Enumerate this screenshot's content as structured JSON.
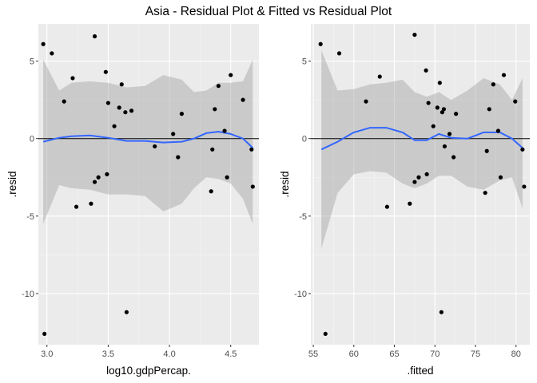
{
  "title": "Asia -  Residual Plot & Fitted vs Residual Plot",
  "chart_data": [
    {
      "type": "scatter",
      "xlabel": "log10.gdpPercap.",
      "ylabel": ".resid",
      "xlim": [
        2.93,
        4.73
      ],
      "ylim": [
        -13.3,
        7.4
      ],
      "x_ticks": [
        3.0,
        3.5,
        4.0,
        4.5
      ],
      "x_tick_labels": [
        "3.0",
        "3.5",
        "4.0",
        "4.5"
      ],
      "y_ticks": [
        -10,
        -5,
        0,
        5
      ],
      "y_tick_labels": [
        "-10",
        "-5",
        "0",
        "5"
      ],
      "grid": true,
      "reference_line_y": 0,
      "points": [
        {
          "x": 2.97,
          "y": 6.1
        },
        {
          "x": 2.98,
          "y": -12.6
        },
        {
          "x": 3.04,
          "y": 5.5
        },
        {
          "x": 3.14,
          "y": 2.4
        },
        {
          "x": 3.21,
          "y": 3.9
        },
        {
          "x": 3.24,
          "y": -4.4
        },
        {
          "x": 3.36,
          "y": -4.2
        },
        {
          "x": 3.39,
          "y": 6.6
        },
        {
          "x": 3.39,
          "y": -2.8
        },
        {
          "x": 3.42,
          "y": -2.5
        },
        {
          "x": 3.48,
          "y": 4.3
        },
        {
          "x": 3.49,
          "y": -2.3
        },
        {
          "x": 3.5,
          "y": 2.3
        },
        {
          "x": 3.55,
          "y": 0.8
        },
        {
          "x": 3.59,
          "y": 2.0
        },
        {
          "x": 3.61,
          "y": 3.5
        },
        {
          "x": 3.64,
          "y": 1.7
        },
        {
          "x": 3.65,
          "y": -11.2
        },
        {
          "x": 3.69,
          "y": 1.8
        },
        {
          "x": 3.88,
          "y": -0.5
        },
        {
          "x": 4.03,
          "y": 0.3
        },
        {
          "x": 4.07,
          "y": -1.2
        },
        {
          "x": 4.1,
          "y": 1.6
        },
        {
          "x": 4.34,
          "y": -3.4
        },
        {
          "x": 4.35,
          "y": -0.7
        },
        {
          "x": 4.37,
          "y": 1.9
        },
        {
          "x": 4.4,
          "y": 3.4
        },
        {
          "x": 4.45,
          "y": 0.5
        },
        {
          "x": 4.47,
          "y": -2.5
        },
        {
          "x": 4.5,
          "y": 4.1
        },
        {
          "x": 4.6,
          "y": 2.5
        },
        {
          "x": 4.67,
          "y": -0.7
        },
        {
          "x": 4.68,
          "y": -3.1
        }
      ],
      "smooth": {
        "x": [
          2.97,
          3.1,
          3.2,
          3.35,
          3.5,
          3.65,
          3.8,
          3.95,
          4.1,
          4.2,
          4.3,
          4.4,
          4.5,
          4.6,
          4.68
        ],
        "y": [
          -0.2,
          0.05,
          0.15,
          0.2,
          0.05,
          -0.15,
          -0.15,
          -0.25,
          -0.2,
          0.0,
          0.35,
          0.45,
          0.3,
          0.0,
          -0.6
        ],
        "lower": [
          -5.5,
          -3.0,
          -3.2,
          -3.3,
          -3.6,
          -3.6,
          -3.7,
          -4.7,
          -4.2,
          -3.2,
          -2.5,
          -2.6,
          -2.9,
          -3.9,
          -5.5
        ],
        "upper": [
          5.1,
          3.1,
          3.6,
          3.7,
          3.6,
          3.3,
          3.4,
          4.1,
          3.8,
          3.0,
          3.1,
          3.6,
          3.6,
          3.7,
          5.1
        ]
      },
      "colors": {
        "smooth_line": "#3366ff",
        "band": "#999999",
        "points": "#000000",
        "panel": "#ebebeb"
      }
    },
    {
      "type": "scatter",
      "xlabel": ".fitted",
      "ylabel": ".resid",
      "xlim": [
        54.7,
        81.7
      ],
      "ylim": [
        -13.3,
        7.4
      ],
      "x_ticks": [
        55,
        60,
        65,
        70,
        75,
        80
      ],
      "x_tick_labels": [
        "55",
        "60",
        "65",
        "70",
        "75",
        "80"
      ],
      "y_ticks": [
        -10,
        -5,
        0,
        5
      ],
      "y_tick_labels": [
        "-10",
        "-5",
        "0",
        "5"
      ],
      "grid": true,
      "reference_line_y": 0,
      "points": [
        {
          "x": 55.9,
          "y": 6.1
        },
        {
          "x": 56.5,
          "y": -12.6
        },
        {
          "x": 58.2,
          "y": 5.5
        },
        {
          "x": 61.5,
          "y": 2.4
        },
        {
          "x": 63.2,
          "y": 4.0
        },
        {
          "x": 64.1,
          "y": -4.4
        },
        {
          "x": 66.9,
          "y": -4.2
        },
        {
          "x": 67.5,
          "y": 6.7
        },
        {
          "x": 67.5,
          "y": -2.8
        },
        {
          "x": 68.0,
          "y": -2.5
        },
        {
          "x": 68.9,
          "y": 4.4
        },
        {
          "x": 69.0,
          "y": -2.3
        },
        {
          "x": 69.2,
          "y": 2.3
        },
        {
          "x": 69.8,
          "y": 0.8
        },
        {
          "x": 70.3,
          "y": 2.0
        },
        {
          "x": 70.6,
          "y": 3.6
        },
        {
          "x": 70.8,
          "y": -11.2
        },
        {
          "x": 70.9,
          "y": 1.7
        },
        {
          "x": 71.1,
          "y": 1.9
        },
        {
          "x": 71.2,
          "y": -0.5
        },
        {
          "x": 71.8,
          "y": 0.3
        },
        {
          "x": 72.3,
          "y": -1.2
        },
        {
          "x": 72.6,
          "y": 1.6
        },
        {
          "x": 76.2,
          "y": -3.5
        },
        {
          "x": 76.4,
          "y": -0.8
        },
        {
          "x": 76.7,
          "y": 1.9
        },
        {
          "x": 77.2,
          "y": 3.5
        },
        {
          "x": 77.8,
          "y": 0.5
        },
        {
          "x": 78.1,
          "y": -2.5
        },
        {
          "x": 78.5,
          "y": 4.1
        },
        {
          "x": 79.9,
          "y": 2.4
        },
        {
          "x": 80.8,
          "y": -0.7
        },
        {
          "x": 81.0,
          "y": -3.1
        }
      ],
      "smooth": {
        "x": [
          56.0,
          58.0,
          60.0,
          62.0,
          64.0,
          66.0,
          67.5,
          69.0,
          70.5,
          72.0,
          74.0,
          76.0,
          78.0,
          79.5,
          80.8
        ],
        "y": [
          -0.7,
          -0.2,
          0.4,
          0.7,
          0.7,
          0.4,
          -0.1,
          -0.1,
          0.3,
          0.05,
          0.0,
          0.4,
          0.4,
          0.0,
          -0.6
        ],
        "lower": [
          -7.1,
          -3.5,
          -2.3,
          -2.1,
          -2.2,
          -2.9,
          -3.2,
          -2.9,
          -2.4,
          -2.4,
          -3.1,
          -3.3,
          -2.7,
          -2.5,
          -4.5
        ],
        "upper": [
          5.7,
          3.1,
          3.2,
          3.5,
          3.6,
          3.8,
          3.0,
          2.7,
          3.0,
          2.5,
          3.1,
          3.9,
          3.5,
          2.5,
          3.9
        ]
      },
      "colors": {
        "smooth_line": "#3366ff",
        "band": "#999999",
        "points": "#000000",
        "panel": "#ebebeb"
      }
    }
  ]
}
